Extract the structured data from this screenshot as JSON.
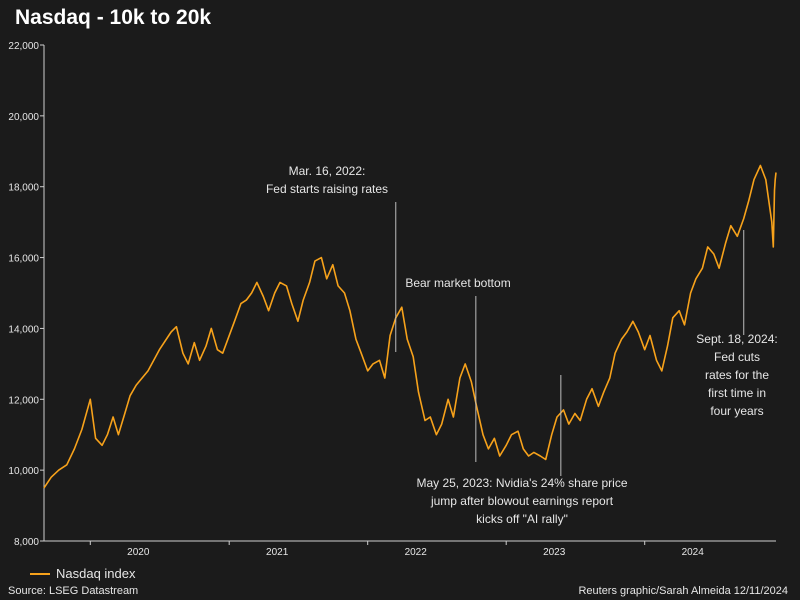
{
  "title": "Nasdaq - 10k to 20k",
  "colors": {
    "background": "#1b1b1b",
    "series": "#f7a21b",
    "text": "#e6e6e6",
    "axis": "#cfcfcf",
    "annotation_line": "#bdbdbd"
  },
  "legend": {
    "label": "Nasdaq index"
  },
  "source": "Source: LSEG Datastream",
  "credit": "Reuters graphic/Sarah Almeida 12/11/2024",
  "chart_data": {
    "type": "line",
    "title": "Nasdaq - 10k to 20k",
    "xlabel": "",
    "ylabel": "",
    "grid": false,
    "legend_placement": "bottom-left",
    "xlim": [
      "2019-09-01",
      "2024-12-12"
    ],
    "ylim": [
      8000,
      22000
    ],
    "y_ticks": [
      8000,
      10000,
      12000,
      14000,
      16000,
      18000,
      20000,
      22000
    ],
    "y_tick_labels": [
      "8,000",
      "10,000",
      "12,000",
      "14,000",
      "16,000",
      "18,000",
      "20,000",
      "22,000"
    ],
    "x_ticks": [
      {
        "date": "2020-01-01",
        "label": "2020"
      },
      {
        "date": "2021-01-01",
        "label": "2021"
      },
      {
        "date": "2022-01-01",
        "label": "2022"
      },
      {
        "date": "2023-01-01",
        "label": "2023"
      },
      {
        "date": "2024-01-01",
        "label": "2024"
      }
    ],
    "series": [
      {
        "name": "Nasdaq index",
        "points": [
          [
            "2019-09-01",
            9500
          ],
          [
            "2019-09-20",
            9800
          ],
          [
            "2019-10-10",
            10000
          ],
          [
            "2019-10-31",
            10150
          ],
          [
            "2019-11-20",
            10600
          ],
          [
            "2019-12-10",
            11150
          ],
          [
            "2020-01-01",
            12000
          ],
          [
            "2020-01-15",
            10900
          ],
          [
            "2020-02-01",
            10700
          ],
          [
            "2020-02-15",
            11000
          ],
          [
            "2020-03-01",
            11500
          ],
          [
            "2020-03-15",
            11000
          ],
          [
            "2020-04-01",
            11600
          ],
          [
            "2020-04-15",
            12100
          ],
          [
            "2020-05-01",
            12400
          ],
          [
            "2020-06-01",
            12800
          ],
          [
            "2020-07-01",
            13400
          ],
          [
            "2020-08-01",
            13900
          ],
          [
            "2020-08-15",
            14050
          ],
          [
            "2020-09-01",
            13300
          ],
          [
            "2020-09-15",
            13000
          ],
          [
            "2020-10-01",
            13600
          ],
          [
            "2020-10-15",
            13100
          ],
          [
            "2020-11-01",
            13500
          ],
          [
            "2020-11-15",
            14000
          ],
          [
            "2020-12-01",
            13400
          ],
          [
            "2020-12-15",
            13300
          ],
          [
            "2021-01-15",
            14200
          ],
          [
            "2021-02-01",
            14700
          ],
          [
            "2021-02-15",
            14800
          ],
          [
            "2021-03-01",
            15000
          ],
          [
            "2021-03-15",
            15300
          ],
          [
            "2021-04-01",
            14900
          ],
          [
            "2021-04-15",
            14500
          ],
          [
            "2021-05-01",
            15000
          ],
          [
            "2021-05-15",
            15300
          ],
          [
            "2021-06-01",
            15200
          ],
          [
            "2021-06-15",
            14700
          ],
          [
            "2021-07-01",
            14200
          ],
          [
            "2021-07-15",
            14800
          ],
          [
            "2021-08-01",
            15300
          ],
          [
            "2021-08-15",
            15900
          ],
          [
            "2021-09-01",
            16000
          ],
          [
            "2021-09-15",
            15400
          ],
          [
            "2021-10-01",
            15800
          ],
          [
            "2021-10-15",
            15200
          ],
          [
            "2021-11-01",
            15000
          ],
          [
            "2021-11-15",
            14500
          ],
          [
            "2021-12-01",
            13700
          ],
          [
            "2021-12-15",
            13300
          ],
          [
            "2022-01-01",
            12800
          ],
          [
            "2022-01-15",
            13000
          ],
          [
            "2022-02-01",
            13100
          ],
          [
            "2022-02-15",
            12600
          ],
          [
            "2022-03-01",
            13800
          ],
          [
            "2022-03-16",
            14300
          ],
          [
            "2022-04-01",
            14600
          ],
          [
            "2022-04-15",
            13700
          ],
          [
            "2022-05-01",
            13200
          ],
          [
            "2022-05-15",
            12200
          ],
          [
            "2022-06-01",
            11400
          ],
          [
            "2022-06-15",
            11500
          ],
          [
            "2022-07-01",
            11000
          ],
          [
            "2022-07-15",
            11300
          ],
          [
            "2022-08-01",
            12000
          ],
          [
            "2022-08-15",
            11500
          ],
          [
            "2022-09-01",
            12600
          ],
          [
            "2022-09-15",
            13000
          ],
          [
            "2022-10-01",
            12500
          ],
          [
            "2022-10-15",
            11800
          ],
          [
            "2022-11-01",
            11000
          ],
          [
            "2022-11-15",
            10600
          ],
          [
            "2022-12-01",
            10900
          ],
          [
            "2022-12-15",
            10400
          ],
          [
            "2023-01-01",
            10700
          ],
          [
            "2023-01-15",
            11000
          ],
          [
            "2023-02-01",
            11100
          ],
          [
            "2023-02-15",
            10600
          ],
          [
            "2023-03-01",
            10400
          ],
          [
            "2023-03-15",
            10500
          ],
          [
            "2023-04-01",
            10400
          ],
          [
            "2023-04-15",
            10300
          ],
          [
            "2023-05-01",
            11000
          ],
          [
            "2023-05-15",
            11500
          ],
          [
            "2023-06-01",
            11700
          ],
          [
            "2023-06-15",
            11300
          ],
          [
            "2023-07-01",
            11600
          ],
          [
            "2023-07-15",
            11400
          ],
          [
            "2023-08-01",
            12000
          ],
          [
            "2023-08-15",
            12300
          ],
          [
            "2023-09-01",
            11800
          ],
          [
            "2023-09-15",
            12200
          ],
          [
            "2023-10-01",
            12600
          ],
          [
            "2023-10-15",
            13300
          ],
          [
            "2023-11-01",
            13700
          ],
          [
            "2023-11-15",
            13900
          ],
          [
            "2023-12-01",
            14200
          ],
          [
            "2023-12-15",
            13900
          ],
          [
            "2024-01-01",
            13400
          ],
          [
            "2024-01-15",
            13800
          ],
          [
            "2024-02-01",
            13100
          ],
          [
            "2024-02-15",
            12800
          ],
          [
            "2024-03-01",
            13500
          ],
          [
            "2024-03-15",
            14300
          ],
          [
            "2024-04-01",
            14500
          ],
          [
            "2024-04-15",
            14100
          ],
          [
            "2024-05-01",
            15000
          ],
          [
            "2024-05-15",
            15400
          ],
          [
            "2024-06-01",
            15700
          ],
          [
            "2024-06-15",
            16300
          ],
          [
            "2024-07-01",
            16100
          ],
          [
            "2024-07-15",
            15700
          ],
          [
            "2024-08-01",
            16400
          ],
          [
            "2024-08-15",
            16900
          ],
          [
            "2024-09-01",
            16600
          ],
          [
            "2024-09-18",
            17100
          ],
          [
            "2024-10-01",
            17600
          ],
          [
            "2024-10-15",
            18200
          ],
          [
            "2024-11-01",
            18600
          ],
          [
            "2024-11-15",
            18200
          ],
          [
            "2024-12-01",
            17000
          ],
          [
            "2024-12-05",
            16300
          ],
          [
            "2024-12-08",
            17900
          ],
          [
            "2024-12-10",
            18200
          ],
          [
            "2024-12-12",
            18400
          ]
        ]
      }
    ],
    "annotations": [
      {
        "date": "2022-03-16",
        "lines": [
          "Mar. 16, 2022:",
          "Fed starts raising rates"
        ]
      },
      {
        "date": "2022-10-13",
        "lines": [
          "Bear market bottom"
        ]
      },
      {
        "date": "2023-05-25",
        "lines": [
          "May 25, 2023: Nvidia's 24% share price",
          "jump after blowout earnings report",
          "kicks off \"AI rally\""
        ]
      },
      {
        "date": "2024-09-18",
        "lines": [
          "Sept. 18, 2024:",
          "Fed cuts",
          "rates for the",
          "first time in",
          "four years"
        ]
      }
    ]
  }
}
